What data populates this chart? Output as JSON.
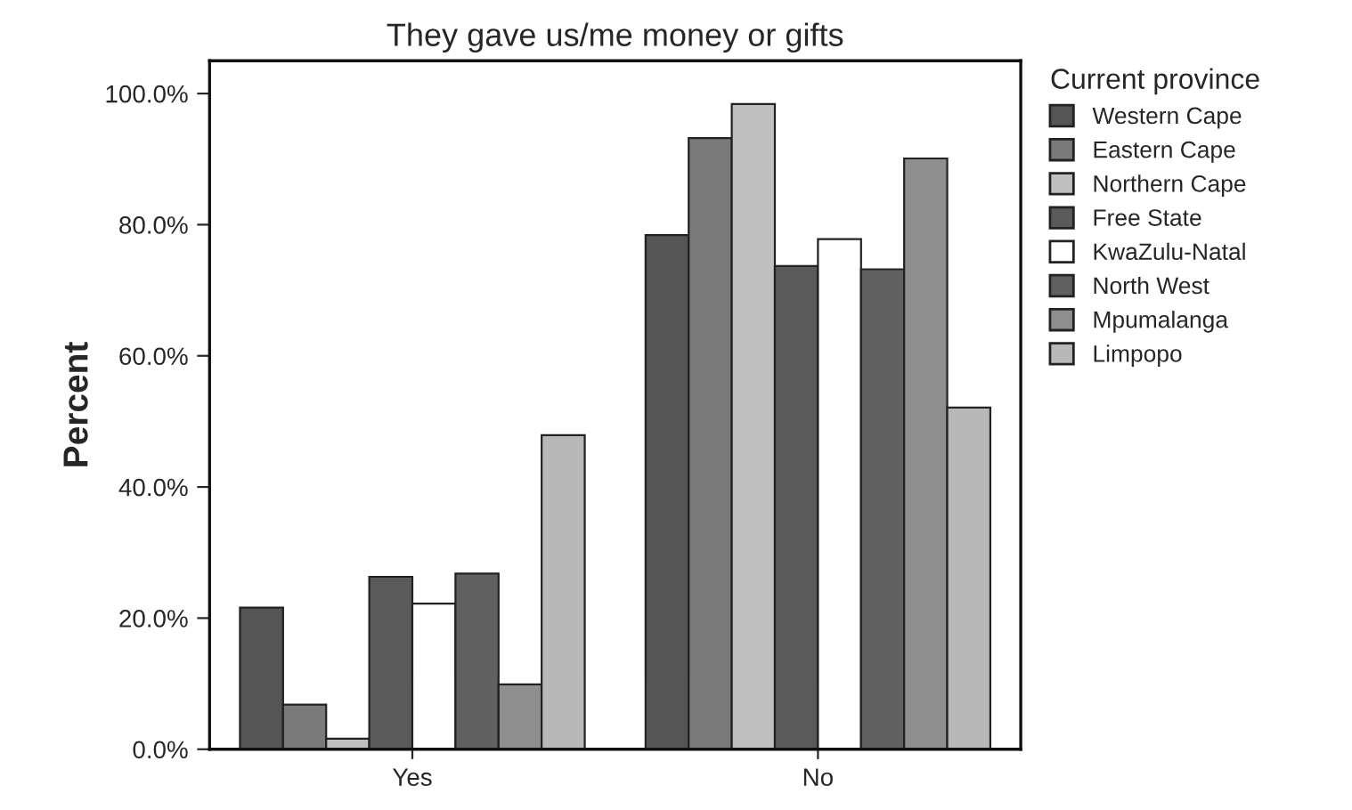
{
  "chart_data": {
    "type": "bar",
    "title": "They gave us/me money or gifts",
    "ylabel": "Percent",
    "legend_title": "Current province",
    "categories": [
      "Yes",
      "No"
    ],
    "series": [
      {
        "name": "Western Cape",
        "color": "#555555",
        "values": [
          21.6,
          78.4
        ]
      },
      {
        "name": "Eastern Cape",
        "color": "#7a7a7a",
        "values": [
          6.8,
          93.2
        ]
      },
      {
        "name": "Northern Cape",
        "color": "#c0c0c0",
        "values": [
          1.6,
          98.4
        ]
      },
      {
        "name": "Free State",
        "color": "#5a5a5a",
        "values": [
          26.3,
          73.7
        ]
      },
      {
        "name": "KwaZulu-Natal",
        "color": "#ffffff",
        "values": [
          22.2,
          77.8
        ]
      },
      {
        "name": "North West",
        "color": "#606060",
        "values": [
          26.8,
          73.2
        ]
      },
      {
        "name": "Mpumalanga",
        "color": "#8e8e8e",
        "values": [
          9.9,
          90.1
        ]
      },
      {
        "name": "Limpopo",
        "color": "#b8b8b8",
        "values": [
          47.9,
          52.1
        ]
      }
    ],
    "ylim": [
      0,
      105
    ],
    "yticks": [
      {
        "value": 0,
        "label": "0.0%"
      },
      {
        "value": 20,
        "label": "20.0%"
      },
      {
        "value": 40,
        "label": "40.0%"
      },
      {
        "value": 60,
        "label": "60.0%"
      },
      {
        "value": 80,
        "label": "80.0%"
      },
      {
        "value": 100,
        "label": "100.0%"
      }
    ],
    "grid": false,
    "legend": "right"
  }
}
